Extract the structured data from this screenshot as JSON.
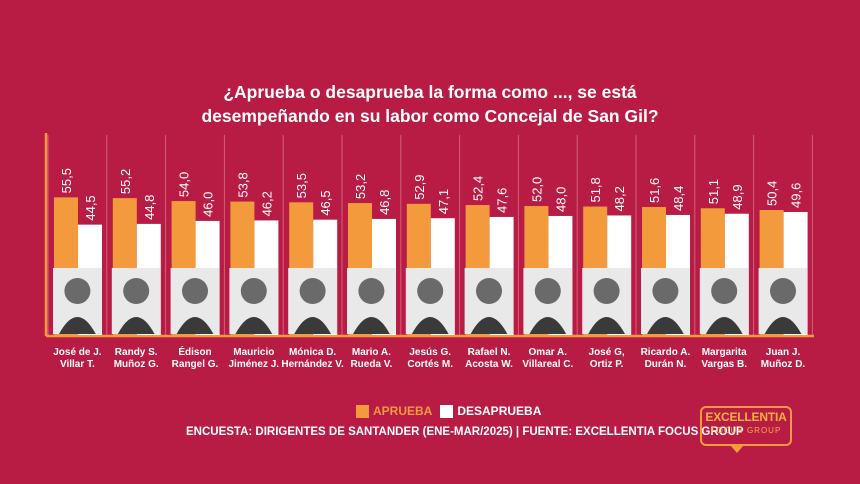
{
  "title_lines": [
    "¿Aprueba o desaprueba la forma como ..., se está",
    "desempeñando en su labor como Concejal de San Gil?"
  ],
  "colors": {
    "background": "#b81c45",
    "aprueba": "#f39a3d",
    "desaprueba": "#ffffff"
  },
  "chart_data": {
    "type": "bar",
    "title": "¿Aprueba o desaprueba la forma como ..., se está desempeñando en su labor como Concejal de San Gil?",
    "categories": [
      [
        "José de J.",
        "Villar T."
      ],
      [
        "Randy S.",
        "Muñoz G."
      ],
      [
        "Édison",
        "Rangel G."
      ],
      [
        "Mauricio",
        "Jiménez J."
      ],
      [
        "Mónica D.",
        "Hernández V."
      ],
      [
        "Mario A.",
        "Rueda V."
      ],
      [
        "Jesús G.",
        "Cortés M."
      ],
      [
        "Rafael N.",
        "Acosta W."
      ],
      [
        "Omar A.",
        "Villareal C."
      ],
      [
        "José G,",
        "Ortiz P."
      ],
      [
        "Ricardo A.",
        "Durán N."
      ],
      [
        "Margarita",
        "Vargas B."
      ],
      [
        "Juan J.",
        "Muñoz D."
      ]
    ],
    "series": [
      {
        "name": "APRUEBA",
        "color": "#f39a3d",
        "values": [
          55.5,
          55.2,
          54.0,
          53.8,
          53.5,
          53.2,
          52.9,
          52.4,
          52.0,
          51.8,
          51.6,
          51.1,
          50.4
        ],
        "labels": [
          "55,5",
          "55,2",
          "54,0",
          "53,8",
          "53,5",
          "53,2",
          "52,9",
          "52,4",
          "52,0",
          "51,8",
          "51,6",
          "51,1",
          "50,4"
        ]
      },
      {
        "name": "DESAPRUEBA",
        "color": "#ffffff",
        "values": [
          44.5,
          44.8,
          46.0,
          46.2,
          46.5,
          46.8,
          47.1,
          47.6,
          48.0,
          48.2,
          48.4,
          48.9,
          49.6
        ],
        "labels": [
          "44,5",
          "44,8",
          "46,0",
          "46,2",
          "46,5",
          "46,8",
          "47,1",
          "47,6",
          "48,0",
          "48,2",
          "48,4",
          "48,9",
          "49,6"
        ]
      }
    ],
    "legend_position": "bottom"
  },
  "legend": {
    "aprueba": "APRUEBA",
    "desaprueba": "DESAPRUEBA"
  },
  "footer": "ENCUESTA: DIRIGENTES DE SANTANDER (ENE-MAR/2025) | FUENTE: EXCELLENTIA FOCUS GROUP",
  "logo": {
    "line1": "EXCELLENTIA",
    "line2": "FOCUS GROUP"
  }
}
